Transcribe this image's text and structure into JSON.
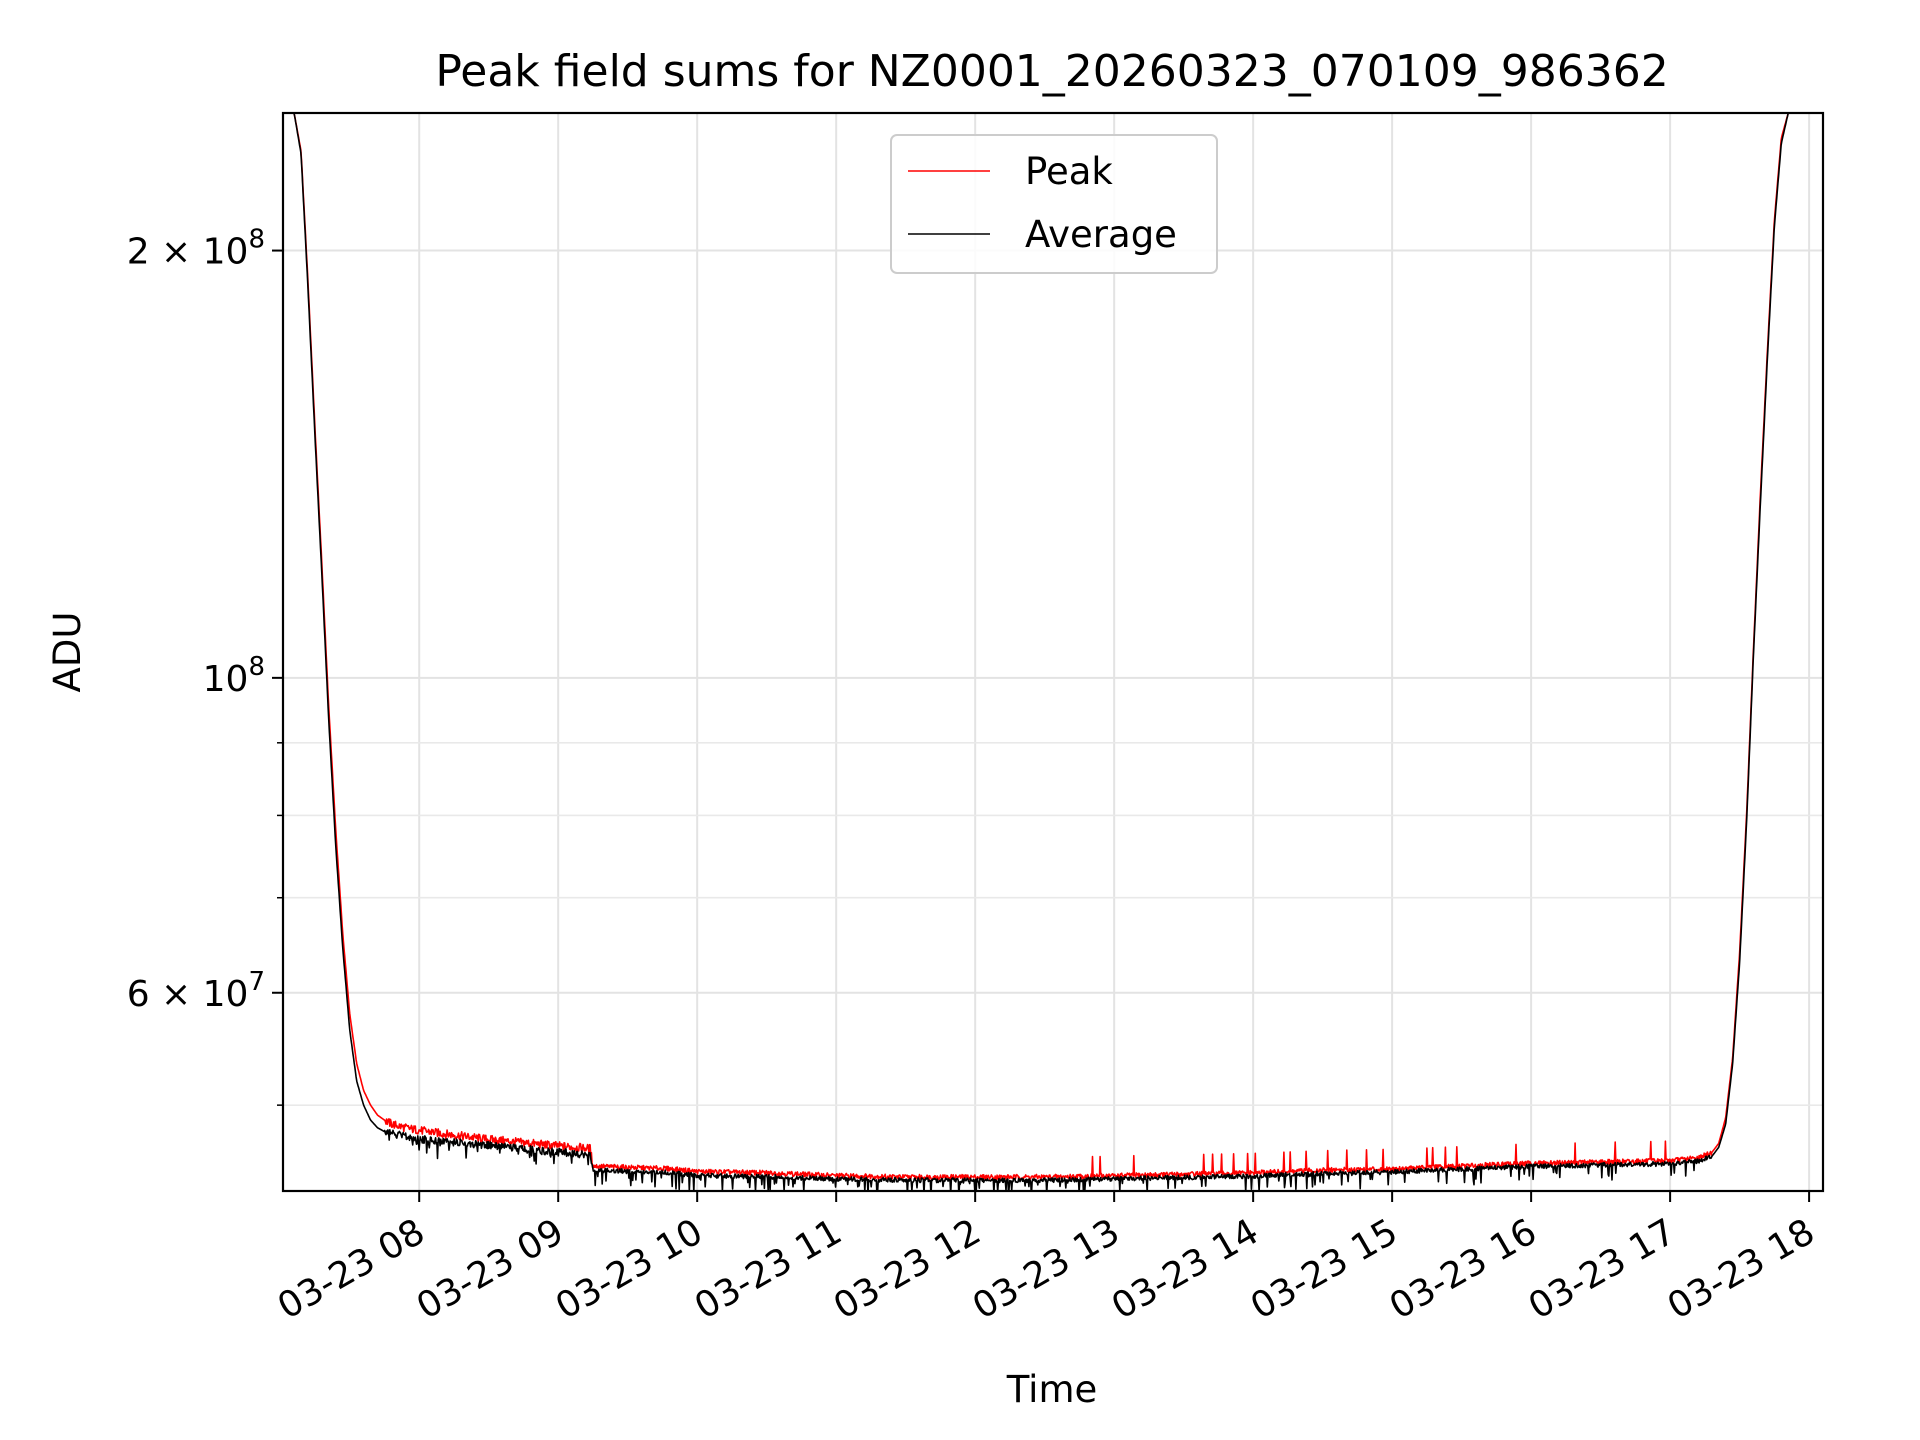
{
  "chart_data": {
    "type": "line",
    "title": "Peak field sums for NZ0001_20260323_070109_986362",
    "xlabel": "Time",
    "ylabel": "ADU",
    "y_scale": "log",
    "ylim": [
      43500000,
      250000000
    ],
    "xlim_hours": [
      7.02,
      18.1
    ],
    "grid": true,
    "legend": {
      "position": "top-center",
      "entries": [
        "Peak",
        "Average"
      ]
    },
    "x_ticks": [
      {
        "value": 8,
        "label": "03-23 08"
      },
      {
        "value": 9,
        "label": "03-23 09"
      },
      {
        "value": 10,
        "label": "03-23 10"
      },
      {
        "value": 11,
        "label": "03-23 11"
      },
      {
        "value": 12,
        "label": "03-23 12"
      },
      {
        "value": 13,
        "label": "03-23 13"
      },
      {
        "value": 14,
        "label": "03-23 14"
      },
      {
        "value": 15,
        "label": "03-23 15"
      },
      {
        "value": 16,
        "label": "03-23 16"
      },
      {
        "value": 17,
        "label": "03-23 17"
      },
      {
        "value": 18,
        "label": "03-23 18"
      }
    ],
    "y_ticks_major": [
      {
        "value": 200000000,
        "base": "2 × 10",
        "exp": "8"
      },
      {
        "value": 100000000,
        "base": "10",
        "exp": "8"
      },
      {
        "value": 60000000,
        "base": "6 × 10",
        "exp": "7"
      }
    ],
    "y_ticks_minor": [
      50000000,
      70000000,
      80000000,
      90000000
    ],
    "series": [
      {
        "name": "Peak",
        "color": "#ff0000",
        "x_hours": [
          7.02,
          7.1,
          7.15,
          7.2,
          7.25,
          7.3,
          7.35,
          7.4,
          7.45,
          7.5,
          7.55,
          7.6,
          7.65,
          7.7,
          7.75,
          7.8,
          7.9,
          8.0,
          8.2,
          8.5,
          8.8,
          9.0,
          9.23,
          9.25,
          9.5,
          9.8,
          10.0,
          10.5,
          11.0,
          11.5,
          12.0,
          12.5,
          13.0,
          13.5,
          14.0,
          14.5,
          15.0,
          15.5,
          16.0,
          16.5,
          17.0,
          17.2,
          17.3,
          17.35,
          17.4,
          17.45,
          17.5,
          17.55,
          17.6,
          17.65,
          17.7,
          17.75,
          17.8,
          17.85,
          17.9,
          17.95,
          18.0
        ],
        "values": [
          250000000,
          250000000,
          235000000,
          190000000,
          150000000,
          120000000,
          95000000,
          78000000,
          66000000,
          58000000,
          53500000,
          51200000,
          50000000,
          49200000,
          48800000,
          48500000,
          48200000,
          48000000,
          47700000,
          47300000,
          47000000,
          46800000,
          46600000,
          45300000,
          45200000,
          45100000,
          44900000,
          44800000,
          44600000,
          44500000,
          44500000,
          44500000,
          44600000,
          44700000,
          44800000,
          45000000,
          45100000,
          45300000,
          45500000,
          45600000,
          45700000,
          45900000,
          46300000,
          47000000,
          49000000,
          54000000,
          64000000,
          80000000,
          105000000,
          135000000,
          170000000,
          210000000,
          240000000,
          250000000,
          250000000,
          250000000,
          250000000
        ]
      },
      {
        "name": "Average",
        "color": "#000000",
        "x_hours": [
          7.02,
          7.1,
          7.15,
          7.2,
          7.25,
          7.3,
          7.35,
          7.4,
          7.45,
          7.5,
          7.55,
          7.6,
          7.65,
          7.7,
          7.75,
          7.8,
          7.9,
          8.0,
          8.2,
          8.5,
          8.8,
          9.0,
          9.23,
          9.25,
          9.5,
          9.8,
          10.0,
          10.5,
          11.0,
          11.5,
          12.0,
          12.5,
          13.0,
          13.5,
          14.0,
          14.5,
          15.0,
          15.5,
          16.0,
          16.5,
          17.0,
          17.2,
          17.3,
          17.35,
          17.4,
          17.45,
          17.5,
          17.55,
          17.6,
          17.65,
          17.7,
          17.75,
          17.8,
          17.85,
          17.9,
          17.95,
          18.0
        ],
        "values": [
          250000000,
          250000000,
          234000000,
          188000000,
          148000000,
          118000000,
          93000000,
          76000000,
          64500000,
          56500000,
          52000000,
          50000000,
          48800000,
          48200000,
          47900000,
          47700000,
          47500000,
          47300000,
          47100000,
          46800000,
          46500000,
          46300000,
          46100000,
          45000000,
          44900000,
          44800000,
          44600000,
          44500000,
          44350000,
          44250000,
          44250000,
          44250000,
          44350000,
          44450000,
          44550000,
          44750000,
          44850000,
          45050000,
          45250000,
          45350000,
          45450000,
          45650000,
          46000000,
          46700000,
          48500000,
          53500000,
          63000000,
          79000000,
          104000000,
          133000000,
          168000000,
          208000000,
          238000000,
          250000000,
          250000000,
          250000000,
          250000000
        ]
      }
    ]
  }
}
